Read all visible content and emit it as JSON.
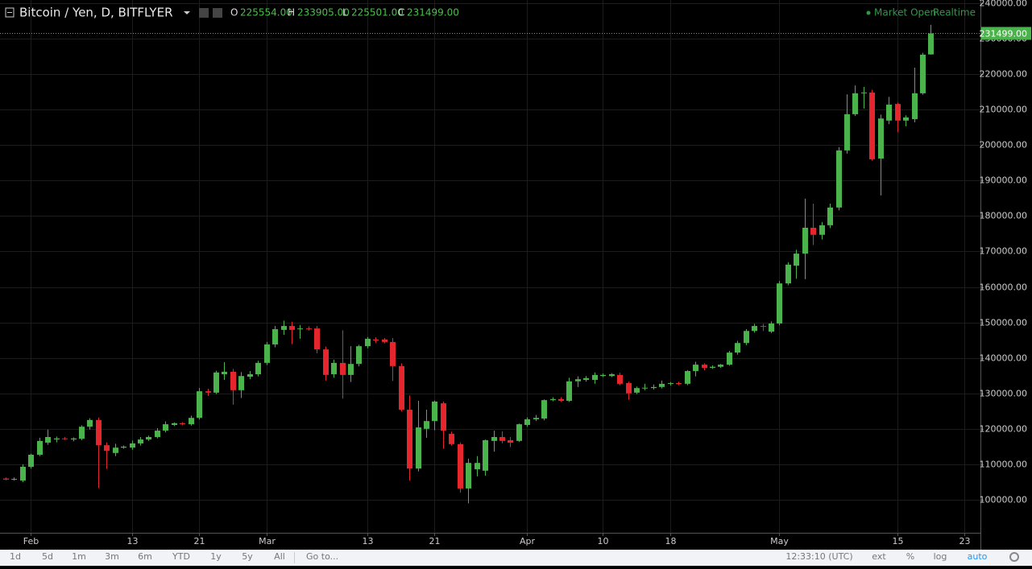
{
  "chart_data": {
    "type": "candlestick",
    "title": "Bitcoin / Yen, D, BITFLYER",
    "ohlc_header": [
      {
        "name": "O",
        "label": "225554.00"
      },
      {
        "name": "H",
        "label": "233905.00"
      },
      {
        "name": "L",
        "label": "225501.00"
      },
      {
        "name": "C",
        "label": "231499.00"
      }
    ],
    "market_status": "Market Open",
    "feed": "Realtime",
    "last_price": {
      "value": 231499,
      "label": "231499.00"
    },
    "up_color": "#4bb34b",
    "down_color": "#e5262c",
    "grid": true,
    "ylim": [
      90700,
      240900
    ],
    "yticks": [
      {
        "value": 100000,
        "label": "100000.00"
      },
      {
        "value": 110000,
        "label": "110000.00"
      },
      {
        "value": 120000,
        "label": "120000.00"
      },
      {
        "value": 130000,
        "label": "130000.00"
      },
      {
        "value": 140000,
        "label": "140000.00"
      },
      {
        "value": 150000,
        "label": "150000.00"
      },
      {
        "value": 160000,
        "label": "160000.00"
      },
      {
        "value": 170000,
        "label": "170000.00"
      },
      {
        "value": 180000,
        "label": "180000.00"
      },
      {
        "value": 190000,
        "label": "190000.00"
      },
      {
        "value": 200000,
        "label": "200000.00"
      },
      {
        "value": 210000,
        "label": "210000.00"
      },
      {
        "value": 220000,
        "label": "220000.00"
      },
      {
        "value": 230000,
        "label": "230000.00"
      },
      {
        "value": 240000,
        "label": "240000.00"
      }
    ],
    "categories": [
      null,
      null,
      null,
      "Feb",
      null,
      null,
      null,
      null,
      null,
      null,
      null,
      null,
      null,
      null,
      null,
      "13",
      null,
      null,
      null,
      null,
      null,
      null,
      null,
      "21",
      null,
      null,
      null,
      null,
      null,
      null,
      null,
      "Mar",
      null,
      null,
      null,
      null,
      null,
      null,
      null,
      null,
      null,
      null,
      null,
      "13",
      null,
      null,
      null,
      null,
      null,
      null,
      null,
      "21",
      null,
      null,
      null,
      null,
      null,
      null,
      null,
      null,
      null,
      null,
      "Apr",
      null,
      null,
      null,
      null,
      null,
      null,
      null,
      null,
      "10",
      null,
      null,
      null,
      null,
      null,
      null,
      null,
      "18",
      null,
      null,
      null,
      null,
      null,
      null,
      null,
      null,
      null,
      null,
      null,
      null,
      "May",
      null,
      null,
      null,
      null,
      null,
      null,
      null,
      null,
      null,
      null,
      null,
      null,
      null,
      "15",
      null,
      null,
      null,
      null,
      null,
      null,
      null,
      "23",
      null
    ],
    "open": [
      106000,
      105700,
      105400,
      109300,
      112700,
      116100,
      117000,
      117300,
      117000,
      117200,
      120600,
      122500,
      115400,
      113200,
      114700,
      114700,
      115900,
      117000,
      117700,
      119500,
      121100,
      121600,
      121300,
      123100,
      130600,
      130200,
      135400,
      136100,
      130900,
      134700,
      135400,
      138600,
      143800,
      147900,
      149000,
      148100,
      148300,
      148300,
      142400,
      135400,
      138600,
      135200,
      138300,
      143300,
      145200,
      145200,
      144500,
      137700,
      125400,
      108800,
      120000,
      122200,
      127200,
      118600,
      115700,
      103200,
      108600,
      108200,
      116600,
      117700,
      116800,
      116600,
      121100,
      122700,
      122900,
      128100,
      128400,
      127900,
      133400,
      133800,
      133800,
      134900,
      134900,
      135200,
      132900,
      130200,
      131500,
      131500,
      131800,
      132700,
      132900,
      132700,
      136300,
      138100,
      137200,
      137500,
      138100,
      141500,
      144200,
      147600,
      149000,
      147400,
      149700,
      161000,
      166000,
      169400,
      176700,
      174700,
      177400,
      182400,
      198500,
      208700,
      214600,
      214800,
      196200,
      206900,
      211600,
      206900,
      207300,
      214600,
      225554,
      null,
      null,
      null,
      null,
      null
    ],
    "high": [
      106300,
      106300,
      110000,
      113000,
      117500,
      119800,
      117800,
      117700,
      117600,
      121000,
      123000,
      123200,
      116200,
      115800,
      115300,
      116700,
      117700,
      118100,
      120200,
      122100,
      121800,
      121900,
      123700,
      131500,
      131300,
      136400,
      138800,
      136900,
      136000,
      136300,
      139200,
      144500,
      149000,
      150500,
      150200,
      149300,
      148900,
      149000,
      143200,
      139500,
      147800,
      143300,
      143700,
      145900,
      145800,
      145600,
      145600,
      138500,
      129400,
      127900,
      125400,
      128000,
      127700,
      119200,
      116200,
      111600,
      112300,
      117000,
      119500,
      119300,
      117700,
      121500,
      123200,
      123900,
      128300,
      128900,
      128900,
      134400,
      134800,
      134900,
      135900,
      135600,
      135700,
      135800,
      133300,
      131900,
      132700,
      132500,
      133600,
      133200,
      133300,
      136600,
      138900,
      138500,
      137900,
      138300,
      142000,
      144800,
      148100,
      149600,
      149600,
      150300,
      161700,
      167000,
      170500,
      184900,
      183500,
      178300,
      183500,
      199400,
      214300,
      216800,
      216400,
      215600,
      208600,
      213600,
      212000,
      208400,
      221800,
      226000,
      233905,
      null,
      null,
      null,
      null,
      null
    ],
    "low": [
      105500,
      105400,
      105000,
      108800,
      112300,
      115500,
      116200,
      116900,
      116500,
      116800,
      119800,
      103300,
      108700,
      112300,
      114400,
      114100,
      115300,
      116600,
      117300,
      119000,
      120800,
      121000,
      120900,
      122600,
      129300,
      129800,
      133800,
      126800,
      128700,
      134000,
      134800,
      138000,
      143000,
      146500,
      143900,
      145400,
      147700,
      141300,
      133600,
      134400,
      128500,
      133200,
      137600,
      142700,
      144200,
      144100,
      133500,
      124900,
      105400,
      108000,
      117500,
      119600,
      114400,
      115300,
      102000,
      99000,
      106600,
      106800,
      113600,
      115900,
      114900,
      116300,
      120600,
      122200,
      122400,
      127800,
      127600,
      127600,
      131800,
      133300,
      132700,
      134600,
      134600,
      132300,
      128200,
      129800,
      130900,
      131100,
      131400,
      132200,
      132300,
      132300,
      134800,
      136500,
      136900,
      137200,
      137800,
      140900,
      143600,
      147100,
      147600,
      147000,
      149200,
      160500,
      162300,
      162200,
      171800,
      173400,
      176600,
      181600,
      197600,
      208200,
      210300,
      195600,
      185800,
      205900,
      203600,
      205300,
      206400,
      214200,
      225501,
      null,
      null,
      null,
      null,
      null
    ],
    "close": [
      105700,
      105900,
      109300,
      112700,
      116600,
      117700,
      117300,
      117200,
      117300,
      120600,
      122500,
      115400,
      113800,
      114700,
      115000,
      115900,
      117000,
      117700,
      119500,
      121300,
      121600,
      121300,
      123100,
      130600,
      130200,
      135900,
      136100,
      130900,
      134900,
      135400,
      138600,
      143800,
      148100,
      149000,
      147900,
      148300,
      148100,
      142400,
      135200,
      138600,
      135200,
      138300,
      143300,
      145400,
      144900,
      144500,
      137700,
      125400,
      108800,
      120400,
      122200,
      127700,
      119500,
      115700,
      103200,
      110400,
      110400,
      116800,
      117700,
      116600,
      116100,
      121300,
      122700,
      123100,
      128100,
      128400,
      127900,
      133400,
      134000,
      134300,
      135200,
      135200,
      135400,
      132700,
      130000,
      131500,
      131600,
      131800,
      132700,
      132900,
      132600,
      136300,
      138100,
      137200,
      137500,
      138100,
      141500,
      144200,
      147600,
      149000,
      148900,
      149700,
      161000,
      166300,
      169400,
      176700,
      174700,
      177400,
      182400,
      198500,
      208700,
      214600,
      214800,
      196000,
      207500,
      211400,
      206900,
      207800,
      214600,
      225500,
      231499,
      null,
      null,
      null,
      null,
      null
    ]
  },
  "toolbar": {
    "ranges": [
      "1d",
      "5d",
      "1m",
      "3m",
      "6m",
      "YTD",
      "1y",
      "5y",
      "All"
    ],
    "goto": "Go to...",
    "time": "12:33:10 (UTC)",
    "options": [
      "ext",
      "%",
      "log",
      "auto"
    ]
  }
}
